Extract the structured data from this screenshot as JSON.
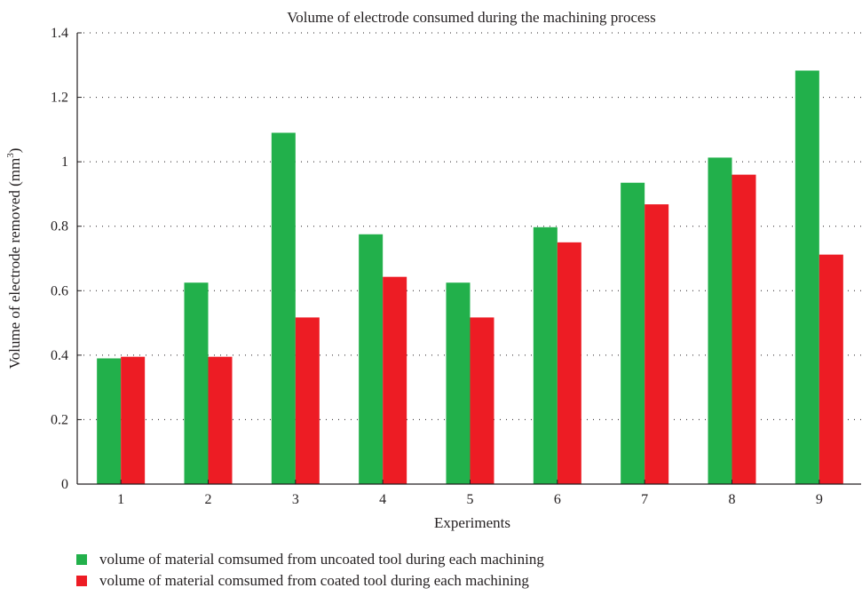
{
  "chart_data": {
    "type": "bar",
    "title": "Volume of electrode consumed during the machining process",
    "xlabel": "Experiments",
    "ylabel": "Volume of electrode removed (mm",
    "ylabel_sup": "3",
    "ylabel_close": ")",
    "categories": [
      "1",
      "2",
      "3",
      "4",
      "5",
      "6",
      "7",
      "8",
      "9"
    ],
    "ylim": [
      0,
      1.4
    ],
    "yticks": [
      "0",
      "0.2",
      "0.4",
      "0.6",
      "0.8",
      "1",
      "1.2",
      "1.4"
    ],
    "grid": "horizontal dotted",
    "legend_position": "bottom",
    "series": [
      {
        "name": "volume of material comsumed from uncoated tool during each machining",
        "color": "#22b04b",
        "values": [
          0.39,
          0.625,
          1.09,
          0.775,
          0.625,
          0.797,
          0.935,
          1.013,
          1.283
        ]
      },
      {
        "name": "volume of material comsumed from coated tool during each machining",
        "color": "#ed1c24",
        "values": [
          0.395,
          0.395,
          0.517,
          0.643,
          0.517,
          0.75,
          0.868,
          0.96,
          0.712
        ]
      }
    ]
  }
}
